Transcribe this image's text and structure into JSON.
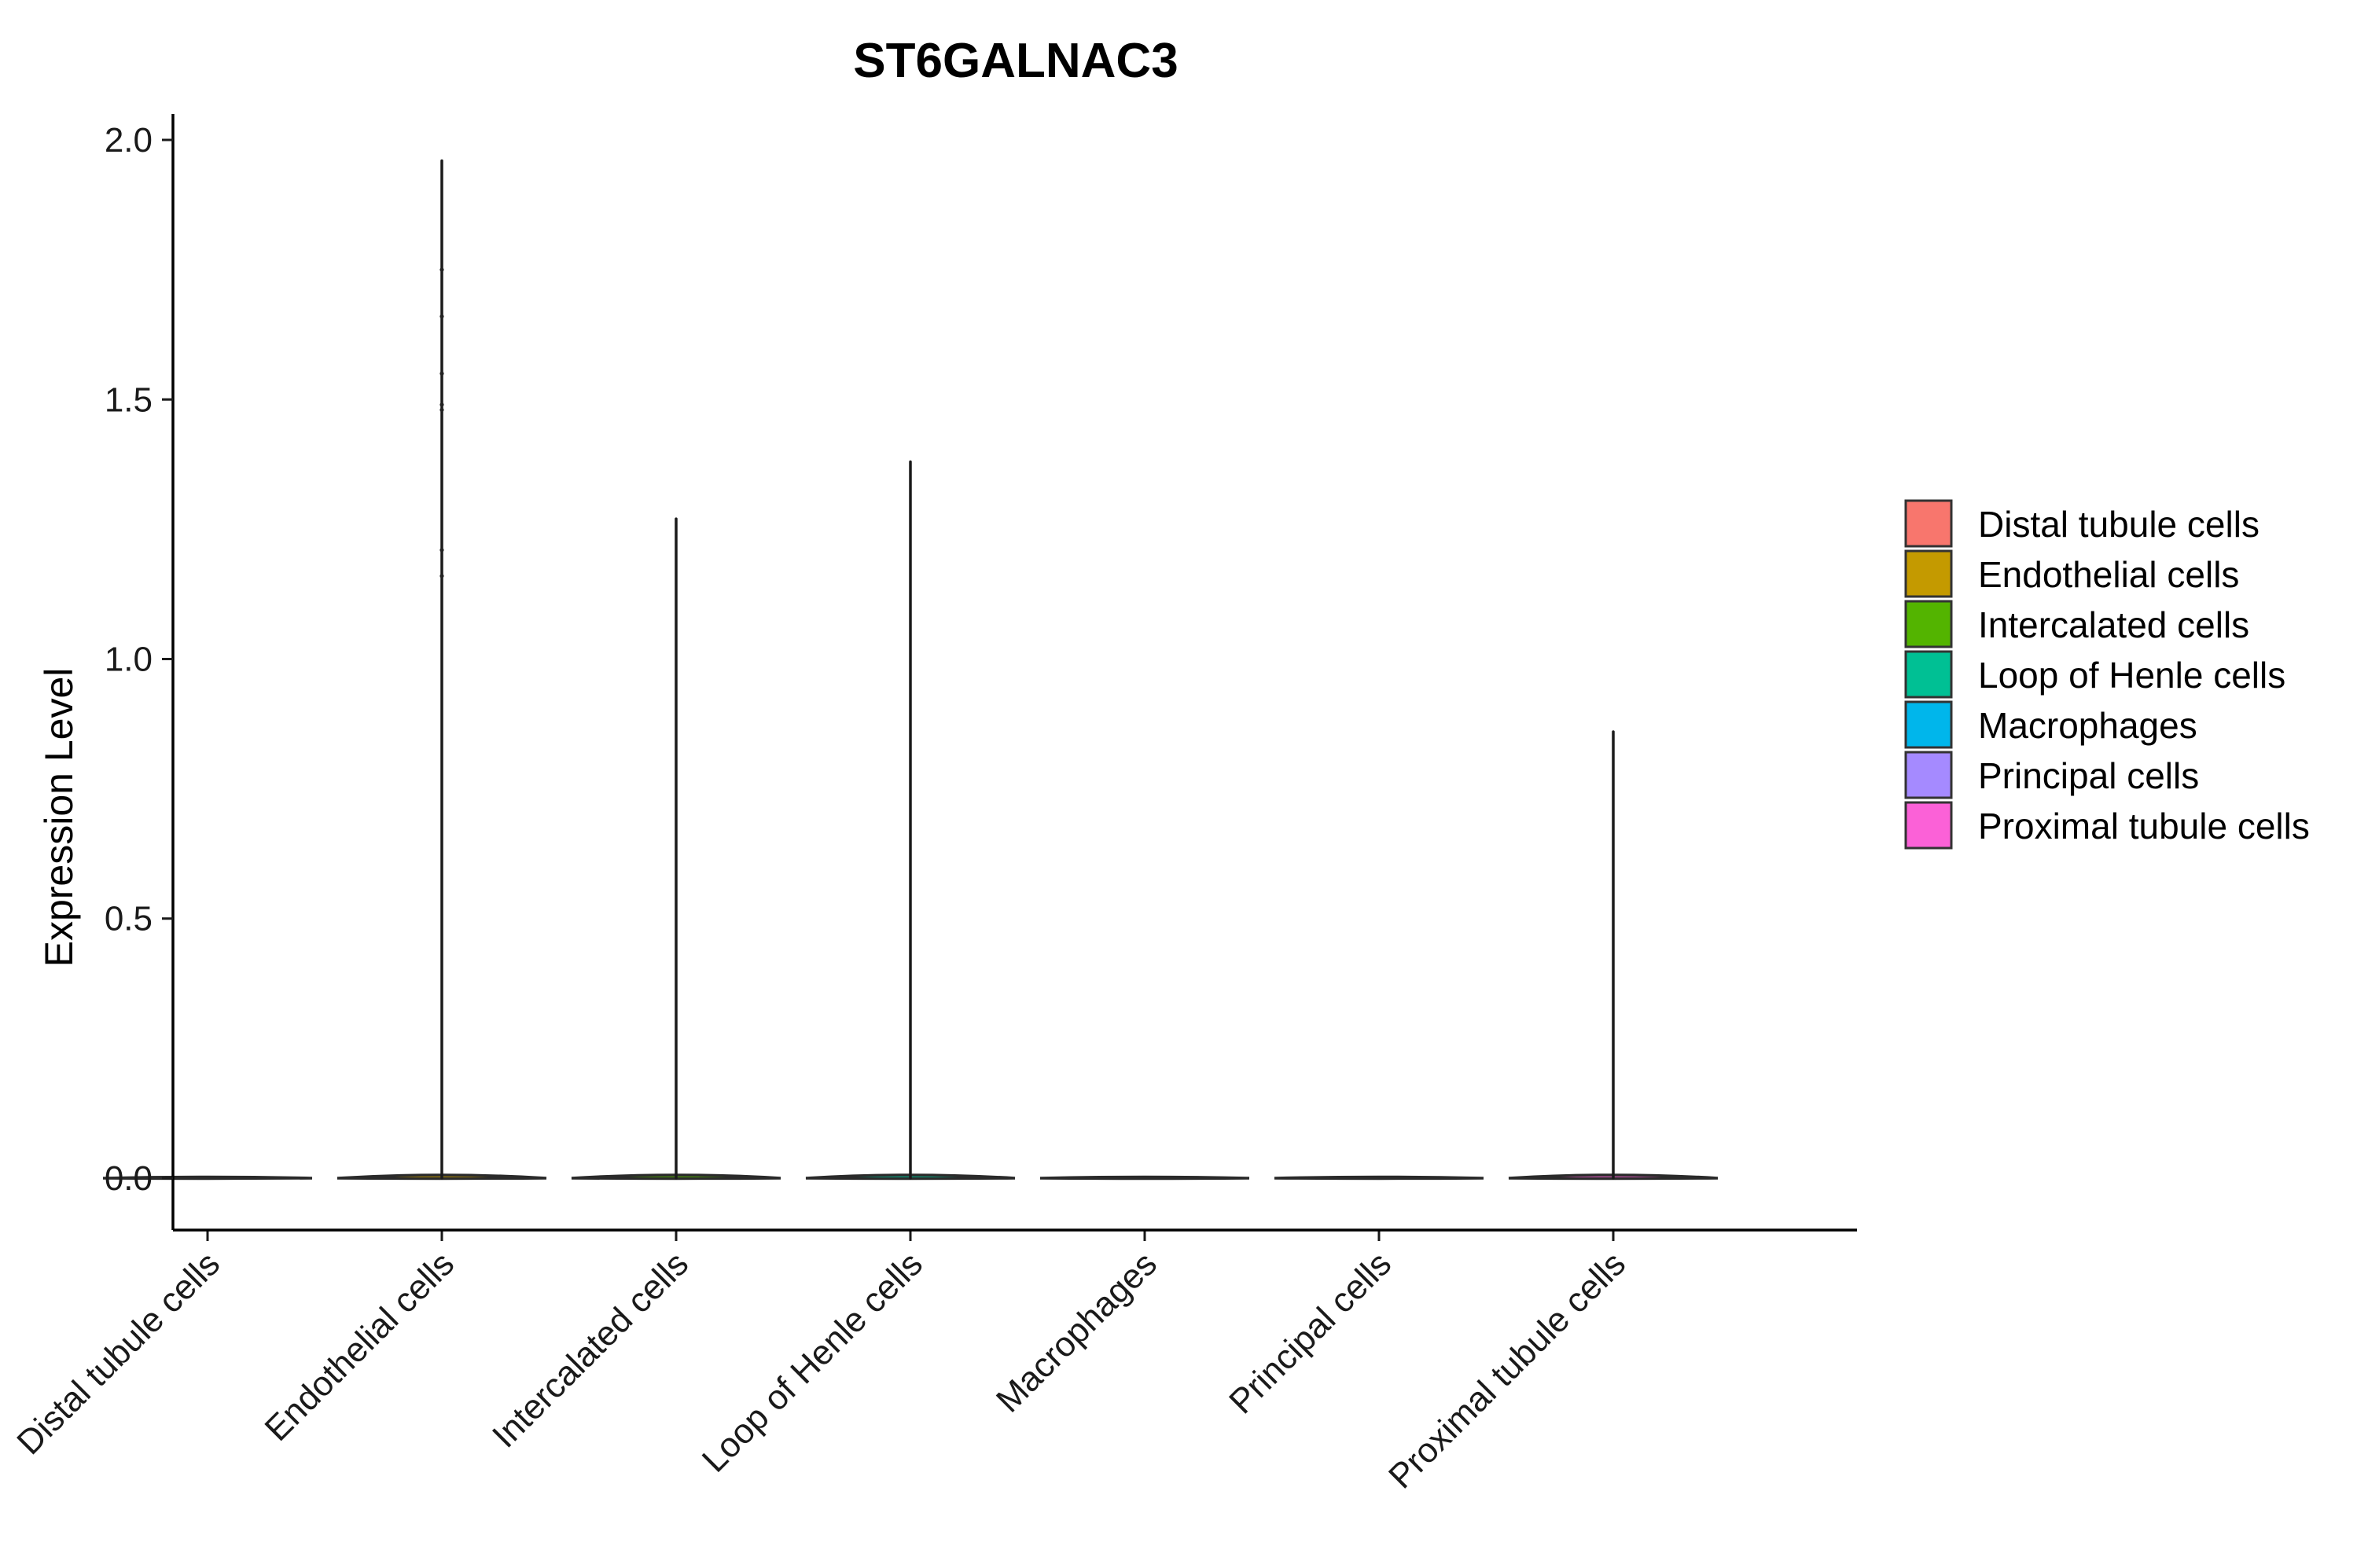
{
  "chart_data": {
    "type": "violin",
    "title": "ST6GALNAC3",
    "xlabel": "",
    "ylabel": "Expression Level",
    "ylim": [
      -0.1,
      2.05
    ],
    "yticks": [
      0.0,
      0.5,
      1.0,
      1.5,
      2.0
    ],
    "ytick_labels": [
      "0.0",
      "0.5",
      "1.0",
      "1.5",
      "2.0"
    ],
    "grid": false,
    "legend_position": "right",
    "categories": [
      "Distal tubule cells",
      "Endothelial cells",
      "Intercalated cells",
      "Loop of Henle cells",
      "Macrophages",
      "Principal cells",
      "Proximal tubule cells"
    ],
    "colors": [
      "#F8766D",
      "#C49A00",
      "#53B400",
      "#00C094",
      "#00B6EB",
      "#A58AFF",
      "#FB61D7"
    ],
    "max_values": [
      0.0,
      1.96,
      1.27,
      1.38,
      0.0,
      0.0,
      0.86
    ],
    "outlier_points": [
      [],
      [
        1.75,
        1.66,
        1.55,
        1.49,
        1.48,
        1.21,
        1.16
      ],
      [],
      [],
      [],
      [],
      []
    ]
  }
}
